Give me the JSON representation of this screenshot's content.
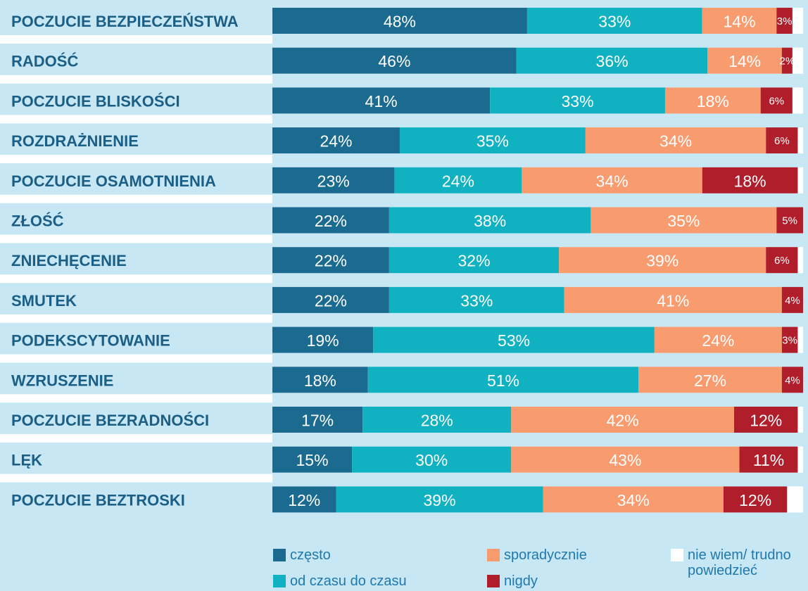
{
  "chart_data": {
    "type": "stacked-bar-horizontal",
    "categories": [
      "POCZUCIE BEZPIECZEŃSTWA",
      "RADOŚĆ",
      "POCZUCIE BLISKOŚCI",
      "ROZDRAŻNIENIE",
      "POCZUCIE OSAMOTNIENIA",
      "ZŁOŚĆ",
      "ZNIECHĘCENIE",
      "SMUTEK",
      "PODEKSCYTOWANIE",
      "WZRUSZENIE",
      "POCZUCIE BEZRADNOŚCI",
      "LĘK",
      "POCZUCIE BEZTROSKI"
    ],
    "xlim": [
      0,
      100
    ],
    "series": [
      {
        "name": "często",
        "color": "#1b6a90",
        "values": [
          48,
          46,
          41,
          24,
          23,
          22,
          22,
          22,
          19,
          18,
          17,
          15,
          12
        ],
        "value_labels": [
          "48%",
          "46%",
          "41%",
          "24%",
          "23%",
          "22%",
          "22%",
          "22%",
          "19%",
          "18%",
          "17%",
          "15%",
          "12%"
        ]
      },
      {
        "name": "od czasu do czasu",
        "color": "#10b2c1",
        "values": [
          33,
          36,
          33,
          35,
          24,
          38,
          32,
          33,
          53,
          51,
          28,
          30,
          39
        ],
        "value_labels": [
          "33%",
          "36%",
          "33%",
          "35%",
          "24%",
          "38%",
          "32%",
          "33%",
          "53%",
          "51%",
          "28%",
          "30%",
          "39%"
        ]
      },
      {
        "name": "sporadycznie",
        "color": "#f89b6f",
        "values": [
          14,
          14,
          18,
          34,
          34,
          35,
          39,
          41,
          24,
          27,
          42,
          43,
          34
        ],
        "value_labels": [
          "14%",
          "14%",
          "18%",
          "34%",
          "34%",
          "35%",
          "39%",
          "41%",
          "24%",
          "27%",
          "42%",
          "43%",
          "34%"
        ]
      },
      {
        "name": "nigdy",
        "color": "#b01e2b",
        "values": [
          3,
          2,
          6,
          6,
          18,
          5,
          6,
          4,
          3,
          4,
          12,
          11,
          12
        ],
        "value_labels": [
          "3%",
          "2%",
          "6%",
          "6%",
          "18%",
          "5%",
          "6%",
          "4%",
          "3%",
          "4%",
          "12%",
          "11%",
          "12%"
        ]
      },
      {
        "name": "nie wiem/ trudno powiedzieć",
        "color": "#ffffff",
        "values": [
          2,
          2,
          2,
          1,
          1,
          0,
          1,
          0,
          1,
          0,
          1,
          1,
          3
        ]
      }
    ]
  }
}
